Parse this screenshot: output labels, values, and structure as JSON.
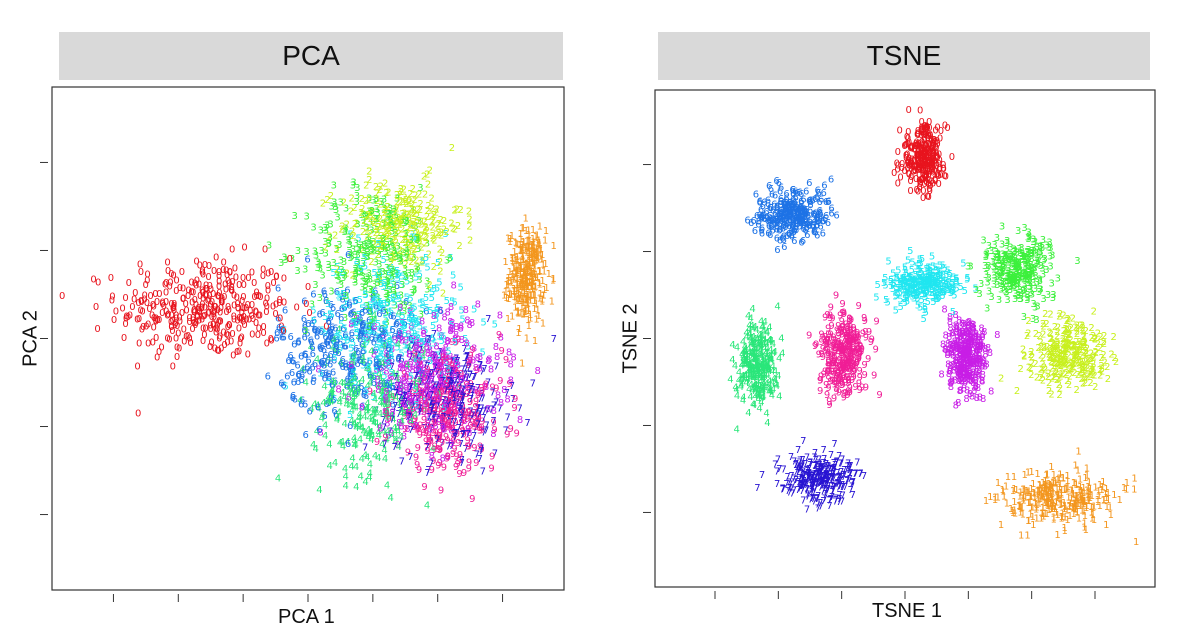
{
  "chart_data": [
    {
      "type": "scatter",
      "title": "PCA",
      "xlabel": "PCA 1",
      "ylabel": "PCA 2",
      "grid": false,
      "legend": "none",
      "marker": "digit glyph (class label)",
      "classes": [
        {
          "label": "0",
          "color": "#e8141e",
          "center": [
            -3.2,
            0.6
          ],
          "spread": [
            1.7,
            1.0
          ],
          "count": 360
        },
        {
          "label": "1",
          "color": "#f3961e",
          "center": [
            3.7,
            1.3
          ],
          "spread": [
            0.35,
            0.9
          ],
          "count": 320
        },
        {
          "label": "2",
          "color": "#c8f01e",
          "center": [
            1.0,
            2.4
          ],
          "spread": [
            1.2,
            0.9
          ],
          "count": 260
        },
        {
          "label": "3",
          "color": "#3cf03c",
          "center": [
            0.4,
            1.8
          ],
          "spread": [
            1.3,
            1.3
          ],
          "count": 280
        },
        {
          "label": "4",
          "color": "#2ae67a",
          "center": [
            0.3,
            -1.5
          ],
          "spread": [
            1.1,
            1.4
          ],
          "count": 260
        },
        {
          "label": "5",
          "color": "#20e6f0",
          "center": [
            0.8,
            0.3
          ],
          "spread": [
            1.4,
            1.4
          ],
          "count": 280
        },
        {
          "label": "6",
          "color": "#1e73e6",
          "center": [
            -0.2,
            -0.3
          ],
          "spread": [
            1.3,
            1.3
          ],
          "count": 280
        },
        {
          "label": "7",
          "color": "#2814d2",
          "center": [
            2.0,
            -1.4
          ],
          "spread": [
            1.2,
            1.1
          ],
          "count": 280
        },
        {
          "label": "8",
          "color": "#c81ee6",
          "center": [
            1.6,
            -0.9
          ],
          "spread": [
            1.4,
            1.3
          ],
          "count": 280
        },
        {
          "label": "9",
          "color": "#f01e96",
          "center": [
            2.0,
            -1.7
          ],
          "spread": [
            1.1,
            1.1
          ],
          "count": 280
        }
      ],
      "xlim": [
        -6.5,
        4.5
      ],
      "ylim": [
        -5.5,
        5.5
      ]
    },
    {
      "type": "scatter",
      "title": "TSNE",
      "xlabel": "TSNE 1",
      "ylabel": "TSNE 2",
      "grid": false,
      "legend": "none",
      "marker": "digit glyph (class label)",
      "classes": [
        {
          "label": "0",
          "color": "#e8141e",
          "center": [
            3.0,
            19.5
          ],
          "spread": [
            2.8,
            3.0
          ],
          "count": 300
        },
        {
          "label": "1",
          "color": "#f3961e",
          "center": [
            22.0,
            -16.0
          ],
          "spread": [
            7.0,
            2.5
          ],
          "count": 320
        },
        {
          "label": "2",
          "color": "#c8f01e",
          "center": [
            23.0,
            -1.0
          ],
          "spread": [
            5.0,
            3.2
          ],
          "count": 300
        },
        {
          "label": "3",
          "color": "#3cf03c",
          "center": [
            16.0,
            8.0
          ],
          "spread": [
            4.0,
            3.0
          ],
          "count": 300
        },
        {
          "label": "4",
          "color": "#2ae67a",
          "center": [
            -20.0,
            -2.0
          ],
          "spread": [
            2.5,
            4.2
          ],
          "count": 280
        },
        {
          "label": "5",
          "color": "#20e6f0",
          "center": [
            3.0,
            6.5
          ],
          "spread": [
            4.5,
            2.0
          ],
          "count": 280
        },
        {
          "label": "6",
          "color": "#1e73e6",
          "center": [
            -15.0,
            13.5
          ],
          "spread": [
            4.5,
            2.5
          ],
          "count": 300
        },
        {
          "label": "7",
          "color": "#2814d2",
          "center": [
            -11.5,
            -14.0
          ],
          "spread": [
            4.5,
            2.2
          ],
          "count": 300
        },
        {
          "label": "8",
          "color": "#c81ee6",
          "center": [
            9.0,
            -1.0
          ],
          "spread": [
            2.5,
            3.5
          ],
          "count": 300
        },
        {
          "label": "9",
          "color": "#f01e96",
          "center": [
            -8.0,
            -1.0
          ],
          "spread": [
            3.0,
            4.0
          ],
          "count": 300
        }
      ],
      "xlim": [
        -34,
        35
      ],
      "ylim": [
        -25,
        27
      ]
    }
  ]
}
